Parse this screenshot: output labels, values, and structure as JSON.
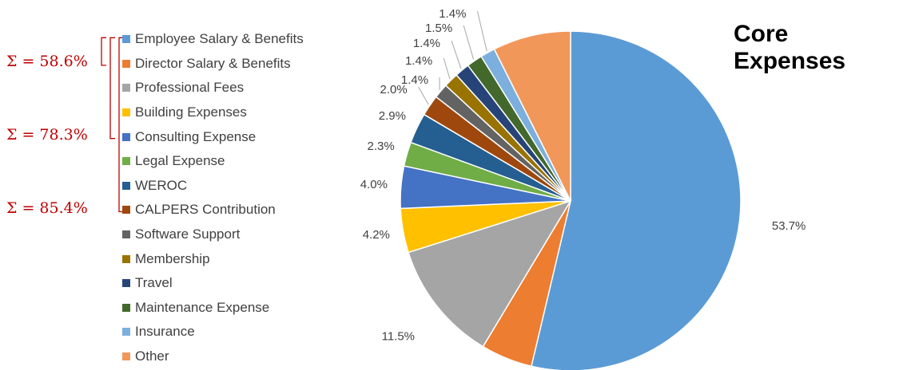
{
  "chart_data": {
    "type": "pie",
    "title": "Core Expenses",
    "series": [
      {
        "name": "Employee Salary & Benefits",
        "value": 53.7,
        "label": "53.7%",
        "color": "#5b9bd5"
      },
      {
        "name": "Director Salary & Benefits",
        "value": 4.9,
        "label": "",
        "color": "#ed7d31"
      },
      {
        "name": "Professional Fees",
        "value": 11.5,
        "label": "11.5%",
        "color": "#a5a5a5"
      },
      {
        "name": "Building Expenses",
        "value": 4.2,
        "label": "4.2%",
        "color": "#ffc000"
      },
      {
        "name": "Consulting Expense",
        "value": 4.0,
        "label": "4.0%",
        "color": "#4472c4"
      },
      {
        "name": "Legal Expense",
        "value": 2.3,
        "label": "2.3%",
        "color": "#70ad47"
      },
      {
        "name": "WEROC",
        "value": 2.9,
        "label": "2.9%",
        "color": "#255e91"
      },
      {
        "name": "CALPERS Contribution",
        "value": 2.0,
        "label": "2.0%",
        "color": "#9e480e"
      },
      {
        "name": "Software Support",
        "value": 1.4,
        "label": "1.4%",
        "color": "#636363"
      },
      {
        "name": "Membership",
        "value": 1.4,
        "label": "1.4%",
        "color": "#997300"
      },
      {
        "name": "Travel",
        "value": 1.4,
        "label": "1.4%",
        "color": "#264478"
      },
      {
        "name": "Maintenance Expense",
        "value": 1.5,
        "label": "1.5%",
        "color": "#43682b"
      },
      {
        "name": "Insurance",
        "value": 1.4,
        "label": "1.4%",
        "color": "#7cafdd"
      },
      {
        "name": "Other",
        "value": 7.4,
        "label": "7.4%",
        "color": "#f1975a"
      }
    ],
    "cumulative_annotations": [
      {
        "text": "Σ = 58.6%",
        "from": "Employee Salary & Benefits",
        "to": "Director Salary & Benefits"
      },
      {
        "text": "Σ = 78.3%",
        "from": "Employee Salary & Benefits",
        "to": "Consulting Expense"
      },
      {
        "text": "Σ = 85.4%",
        "from": "Employee Salary & Benefits",
        "to": "CALPERS Contribution"
      }
    ],
    "annotation_color": "#c00000",
    "legend_position": "left"
  }
}
